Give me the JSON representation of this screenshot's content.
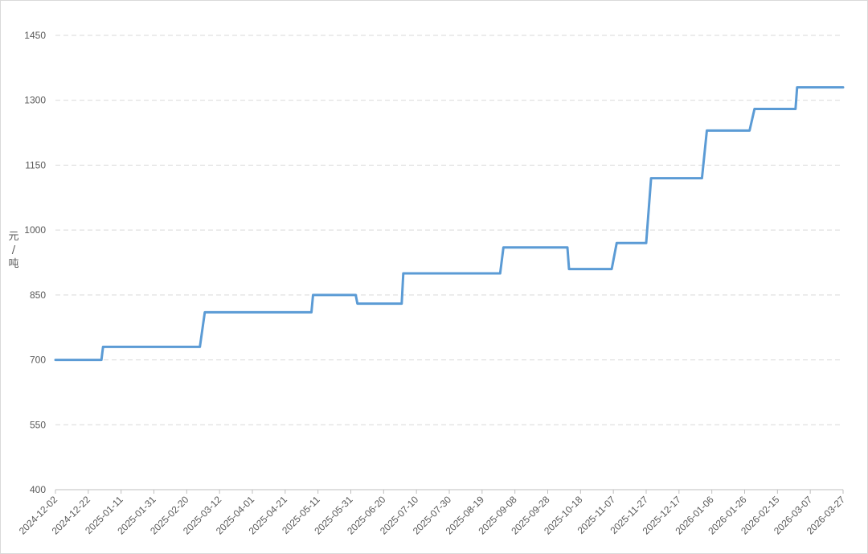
{
  "chart_data": {
    "type": "line",
    "title": "",
    "xlabel": "",
    "ylabel": "元/吨",
    "ylabel_chars": [
      "元",
      "/",
      "吨"
    ],
    "ylim": [
      400,
      1450
    ],
    "yticks": [
      400,
      550,
      700,
      850,
      1000,
      1150,
      1300,
      1450
    ],
    "xlim": [
      "2024-12-02",
      "2026-03-27"
    ],
    "xticks": [
      "2024-12-02",
      "2024-12-22",
      "2025-01-11",
      "2025-01-31",
      "2025-02-20",
      "2025-03-12",
      "2025-04-01",
      "2025-04-21",
      "2025-05-11",
      "2025-05-31",
      "2025-06-20",
      "2025-07-10",
      "2025-07-30",
      "2025-08-19",
      "2025-09-08",
      "2025-09-28",
      "2025-10-18",
      "2025-11-07",
      "2025-11-27",
      "2025-12-17",
      "2026-01-06",
      "2026-01-26",
      "2026-02-15",
      "2026-03-07",
      "2026-03-27"
    ],
    "grid": true,
    "legend": "none",
    "line_color": "#5b9bd5",
    "series": [
      {
        "x": [
          "2024-12-02",
          "2024-12-30",
          "2024-12-31",
          "2025-02-28",
          "2025-03-03",
          "2025-05-07",
          "2025-05-08",
          "2025-06-03",
          "2025-06-04",
          "2025-07-01",
          "2025-07-02",
          "2025-08-30",
          "2025-09-01",
          "2025-10-10",
          "2025-10-11",
          "2025-11-06",
          "2025-11-09",
          "2025-11-27",
          "2025-11-30",
          "2025-12-31",
          "2026-01-03",
          "2026-01-29",
          "2026-02-01",
          "2026-02-26",
          "2026-02-27",
          "2026-03-27"
        ],
        "y": [
          700,
          700,
          730,
          730,
          810,
          810,
          850,
          850,
          830,
          830,
          900,
          900,
          960,
          960,
          910,
          910,
          970,
          970,
          1120,
          1120,
          1230,
          1230,
          1280,
          1280,
          1330,
          1330
        ]
      }
    ]
  }
}
